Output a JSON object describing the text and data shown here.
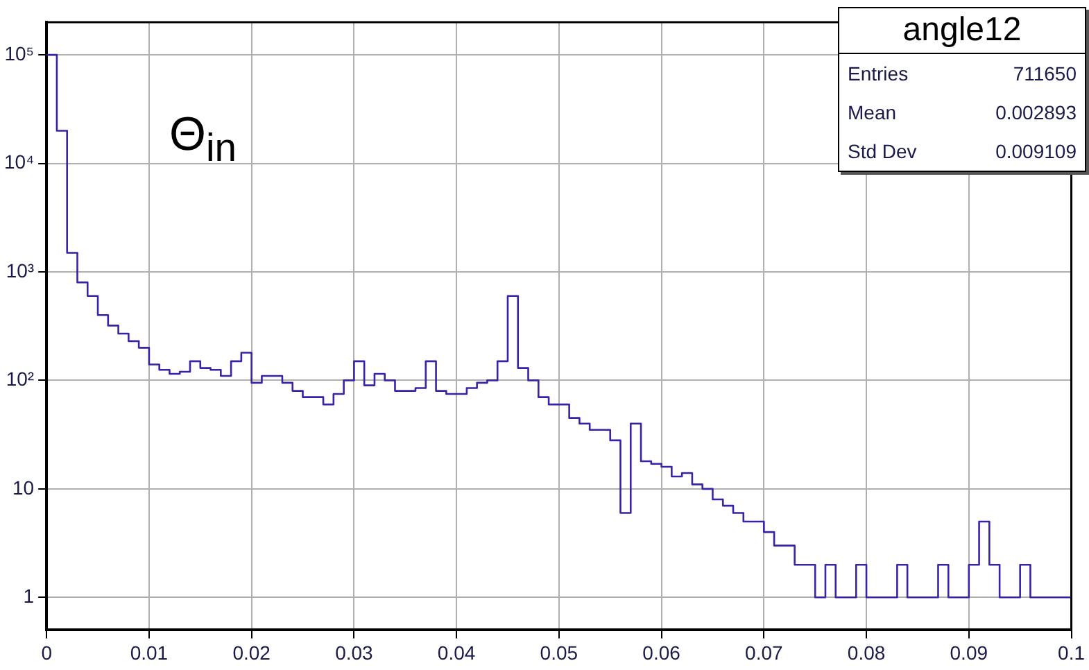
{
  "chart_data": {
    "type": "histogram",
    "title": "angle12",
    "annotations": [
      "Θ$_{in}$",
      "Entries 711650",
      "Mean 0.002893",
      "Std Dev 0.009109"
    ],
    "bins": [
      0,
      0.001,
      0.002,
      0.003,
      0.004,
      0.005,
      0.006,
      0.007,
      0.008,
      0.009,
      0.01,
      0.011,
      0.012,
      0.013,
      0.014,
      0.015,
      0.016,
      0.017,
      0.018,
      0.019,
      0.02,
      0.021,
      0.022,
      0.023,
      0.024,
      0.025,
      0.026,
      0.027,
      0.028,
      0.029,
      0.03,
      0.031,
      0.032,
      0.033,
      0.034,
      0.035,
      0.036,
      0.037,
      0.038,
      0.039,
      0.04,
      0.041,
      0.042,
      0.043,
      0.044,
      0.045,
      0.046,
      0.047,
      0.048,
      0.049,
      0.05,
      0.051,
      0.052,
      0.053,
      0.054,
      0.055,
      0.056,
      0.057,
      0.058,
      0.059,
      0.06,
      0.061,
      0.062,
      0.063,
      0.064,
      0.065,
      0.066,
      0.067,
      0.068,
      0.069,
      0.07,
      0.071,
      0.072,
      0.073,
      0.074,
      0.075,
      0.076,
      0.077,
      0.078,
      0.079,
      0.08,
      0.081,
      0.082,
      0.083,
      0.084,
      0.085,
      0.086,
      0.087,
      0.088,
      0.089,
      0.09,
      0.091,
      0.092,
      0.093,
      0.094,
      0.095,
      0.096,
      0.097,
      0.098,
      0.099,
      0.1
    ],
    "values": [
      100000,
      20000,
      1500,
      800,
      600,
      400,
      320,
      270,
      230,
      200,
      140,
      125,
      115,
      120,
      150,
      130,
      125,
      110,
      150,
      180,
      95,
      110,
      110,
      95,
      80,
      70,
      70,
      60,
      75,
      100,
      150,
      90,
      115,
      100,
      80,
      80,
      85,
      150,
      80,
      75,
      75,
      85,
      95,
      100,
      150,
      600,
      130,
      100,
      70,
      60,
      60,
      45,
      40,
      35,
      35,
      28,
      6,
      40,
      18,
      17,
      16,
      13,
      14,
      11,
      10,
      8,
      7,
      6,
      5,
      5,
      4,
      3,
      3,
      2,
      2,
      1,
      2,
      1,
      1,
      2,
      1,
      1,
      1,
      2,
      1,
      1,
      1,
      2,
      1,
      1,
      2,
      5,
      2,
      1,
      1,
      2,
      1,
      1,
      1,
      1
    ],
    "color": "#3a22a6",
    "xlim": [
      0,
      0.1
    ],
    "xticks": [
      0,
      0.01,
      0.02,
      0.03,
      0.04,
      0.05,
      0.06,
      0.07,
      0.08,
      0.09,
      0.1
    ],
    "ylim": [
      0.5,
      200000
    ],
    "yticks": [
      1,
      10,
      {
        "value": 100,
        "label": "10²"
      },
      {
        "value": 1000,
        "label": "10³"
      },
      {
        "value": 10000,
        "label": "10⁴"
      },
      {
        "value": 100000,
        "label": "10⁵"
      }
    ],
    "log": "y",
    "grid": true,
    "marker": "none",
    "line_style": "solid"
  }
}
